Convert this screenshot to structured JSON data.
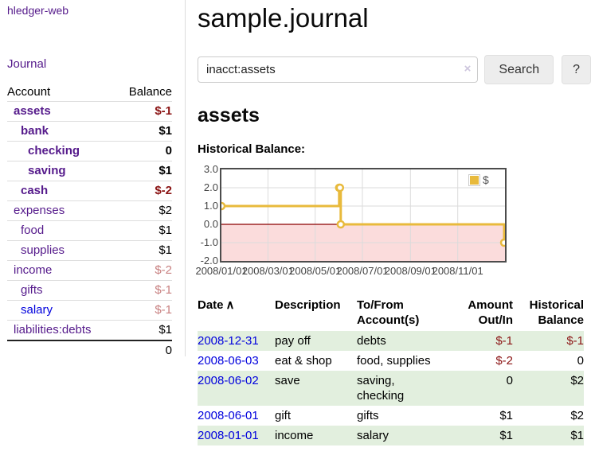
{
  "app": {
    "title": "hledger-web"
  },
  "nav": {
    "journal": "Journal"
  },
  "sidebar": {
    "header": {
      "account": "Account",
      "balance": "Balance"
    },
    "accounts": [
      {
        "name": "assets",
        "balance": "$-1"
      },
      {
        "name": "bank",
        "balance": "$1"
      },
      {
        "name": "checking",
        "balance": "0"
      },
      {
        "name": "saving",
        "balance": "$1"
      },
      {
        "name": "cash",
        "balance": "$-2"
      },
      {
        "name": "expenses",
        "balance": "$2"
      },
      {
        "name": "food",
        "balance": "$1"
      },
      {
        "name": "supplies",
        "balance": "$1"
      },
      {
        "name": "income",
        "balance": "$-2"
      },
      {
        "name": "gifts",
        "balance": "$-1"
      },
      {
        "name": "salary",
        "balance": "$-1"
      },
      {
        "name": "liabilities:debts",
        "balance": "$1"
      }
    ],
    "total": "0"
  },
  "main": {
    "title": "sample.journal",
    "search": {
      "value": "inacct:assets",
      "clear_icon": "×",
      "search_button": "Search",
      "help_button": "?"
    },
    "account_heading": "assets",
    "chart_heading": "Historical Balance:"
  },
  "chart_data": {
    "type": "line",
    "step": true,
    "title": "Historical Balance",
    "series": [
      {
        "name": "$",
        "color": "#e8ba3c",
        "points": [
          [
            "2008-01-01",
            1
          ],
          [
            "2008-06-01",
            2
          ],
          [
            "2008-06-02",
            2
          ],
          [
            "2008-06-03",
            0
          ],
          [
            "2008-12-31",
            -1
          ]
        ]
      }
    ],
    "x_range": [
      "2008-01-01",
      "2009-01-01"
    ],
    "x_ticks": [
      {
        "date": "2008-01-01",
        "label": "2008/01/01"
      },
      {
        "date": "2008-03-01",
        "label": "2008/03/01"
      },
      {
        "date": "2008-05-01",
        "label": "2008/05/01"
      },
      {
        "date": "2008-07-01",
        "label": "2008/07/01"
      },
      {
        "date": "2008-09-01",
        "label": "2008/09/01"
      },
      {
        "date": "2008-11-01",
        "label": "2008/11/01"
      }
    ],
    "y_ticks": [
      {
        "value": 3,
        "label": "3.0"
      },
      {
        "value": 2,
        "label": "2.0"
      },
      {
        "value": 1,
        "label": "1.0"
      },
      {
        "value": 0,
        "label": "0.0"
      },
      {
        "value": -1,
        "label": "-1.0"
      },
      {
        "value": -2,
        "label": "-2.0"
      }
    ],
    "ylim": [
      -2,
      3
    ],
    "grid": true,
    "legend_position": "top-right",
    "zero_line_color": "#8b0000",
    "negative_region_color": "#fbdcdc"
  },
  "register": {
    "headers": {
      "date": "Date",
      "sort_icon": "∧",
      "description": "Description",
      "accounts": "To/From Account(s)",
      "amount": "Amount Out/In",
      "balance": "Historical Balance"
    },
    "rows": [
      {
        "date": "2008-12-31",
        "description": "pay off",
        "accounts": "debts",
        "amount": "$-1",
        "balance": "$-1"
      },
      {
        "date": "2008-06-03",
        "description": "eat & shop",
        "accounts": "food, supplies",
        "amount": "$-2",
        "balance": "0"
      },
      {
        "date": "2008-06-02",
        "description": "save",
        "accounts": "saving, checking",
        "amount": "0",
        "balance": "$2"
      },
      {
        "date": "2008-06-01",
        "description": "gift",
        "accounts": "gifts",
        "amount": "$1",
        "balance": "$2"
      },
      {
        "date": "2008-01-01",
        "description": "income",
        "accounts": "salary",
        "amount": "$1",
        "balance": "$1"
      }
    ]
  },
  "colors": {
    "accent_purple": "#551a8b",
    "link_blue": "#0000dd",
    "negative_strong": "#8b1414",
    "negative_faded": "#c88080",
    "row_stripe_green": "#e2efde",
    "series_gold": "#e8ba3c",
    "negative_region_pink": "#fbdcdc",
    "zero_line_red": "#8b0000"
  }
}
